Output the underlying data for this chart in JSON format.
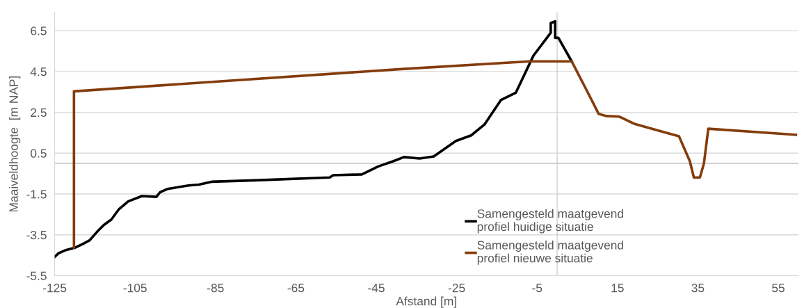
{
  "chart_data": {
    "type": "line",
    "xlabel": "Afstand [m]",
    "ylabel": "Maaiveldhoogte  [m NAP]",
    "xlim": [
      -125,
      60
    ],
    "xticks": [
      -125,
      -105,
      -85,
      -65,
      -45,
      -25,
      -5,
      15,
      35,
      55
    ],
    "ylim": [
      -5.5,
      7.4
    ],
    "yticks": [
      -5.5,
      -3.5,
      -1.5,
      0.5,
      2.5,
      4.5,
      6.5
    ],
    "grid": "y",
    "legend": "bottom right",
    "marker": "none",
    "line_style": "solid",
    "ref_lines": [
      {
        "axis": "x",
        "value": 0,
        "color": "#d0d0d0"
      },
      {
        "axis": "y",
        "value": 0,
        "color": "#bfbfbf"
      }
    ],
    "series": [
      {
        "name": "Samengesteld maatgevend\nprofiel huidige situatie",
        "color": "#000000",
        "x": [
          -125,
          -124,
          -122.4,
          -119.8,
          -117.9,
          -116.3,
          -114.4,
          -112.8,
          -110.9,
          -109,
          -106.7,
          -103.3,
          -99.7,
          -98.8,
          -96.9,
          -91.7,
          -89.1,
          -86,
          -75.2,
          -56.6,
          -55.7,
          -48.6,
          -44.5,
          -40.7,
          -38.1,
          -34.2,
          -30.7,
          -25.2,
          -21.4,
          -18.1,
          -14,
          -10.3,
          -5.9,
          -1.6,
          -1.6,
          -0.5,
          -0.5,
          0.3,
          3.6
        ],
        "values": [
          -4.58,
          -4.4,
          -4.26,
          -4.12,
          -3.94,
          -3.77,
          -3.34,
          -3.02,
          -2.75,
          -2.24,
          -1.86,
          -1.6,
          -1.64,
          -1.42,
          -1.25,
          -1.08,
          -1.04,
          -0.9,
          -0.83,
          -0.69,
          -0.58,
          -0.54,
          -0.15,
          0.11,
          0.31,
          0.24,
          0.34,
          1.1,
          1.37,
          1.9,
          3.1,
          3.46,
          5.28,
          6.4,
          6.87,
          6.96,
          6.15,
          6.15,
          5.0
        ]
      },
      {
        "name": "Samengesteld maatgevend\nprofiel nieuwe situatie",
        "color": "#843c0c",
        "x": [
          -120.2,
          -120.2,
          -38.8,
          -6.8,
          3.6,
          7.4,
          10.3,
          12.2,
          15.5,
          19.3,
          23.9,
          30.3,
          33,
          34,
          35.5,
          36.5,
          37.6,
          59.4
        ],
        "values": [
          -4.12,
          3.53,
          4.62,
          5.0,
          5.0,
          3.56,
          2.43,
          2.32,
          2.29,
          1.93,
          1.68,
          1.33,
          0.11,
          -0.69,
          -0.69,
          -0.01,
          1.7,
          1.4
        ]
      }
    ]
  }
}
